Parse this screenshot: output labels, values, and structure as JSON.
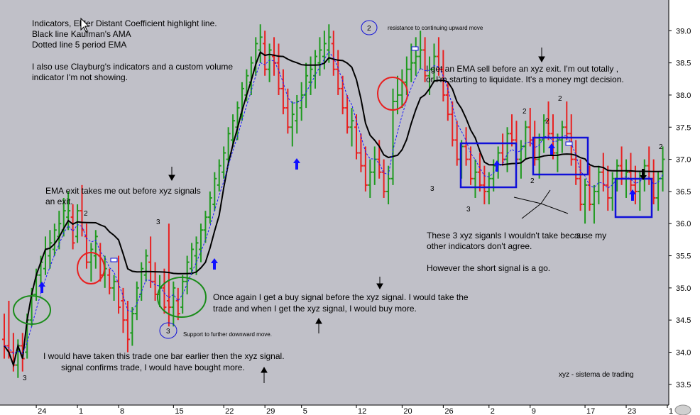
{
  "chart_data": {
    "type": "ohlc",
    "title": "",
    "ylim": [
      33.2,
      39.5
    ],
    "y_ticks": [
      "39.0",
      "38.5",
      "38.0",
      "37.5",
      "37.0",
      "36.5",
      "36.0",
      "35.5",
      "35.0",
      "34.5",
      "34.0",
      "33.5"
    ],
    "y_tick_values": [
      39.0,
      38.5,
      38.0,
      37.5,
      37.0,
      36.5,
      36.0,
      35.5,
      35.0,
      34.5,
      34.0,
      33.5
    ],
    "x_ticks": [
      "24",
      "1",
      "8",
      "15",
      "22",
      "29",
      "5",
      "12",
      "20",
      "26",
      "2",
      "9",
      "17",
      "23",
      "1"
    ],
    "x_tick_bars": [
      7,
      16,
      25,
      37,
      48,
      57,
      65,
      77,
      87,
      96,
      106,
      115,
      127,
      136,
      145
    ],
    "colors": {
      "up": "#1e9a1e",
      "down": "#e82020",
      "ama": "#000000",
      "ema": "#1a1aff",
      "background": "#c0c0c8",
      "circle_green": "#1a8c1a",
      "circle_red": "#e82020",
      "box": "#1010d8"
    },
    "bars": [
      [
        34.2,
        34.6,
        33.9,
        34.1
      ],
      [
        34.1,
        34.8,
        33.9,
        34.0
      ],
      [
        34.0,
        34.3,
        33.7,
        33.8
      ],
      [
        33.8,
        34.2,
        33.6,
        34.1
      ],
      [
        34.1,
        34.3,
        33.7,
        33.9
      ],
      [
        34.0,
        34.6,
        33.9,
        34.5
      ],
      [
        34.5,
        35.0,
        34.4,
        34.9
      ],
      [
        34.9,
        35.3,
        34.8,
        35.2
      ],
      [
        35.2,
        35.5,
        35.0,
        35.4
      ],
      [
        35.3,
        35.8,
        35.2,
        35.6
      ],
      [
        35.5,
        35.9,
        35.3,
        35.7
      ],
      [
        35.6,
        36.0,
        35.5,
        35.9
      ],
      [
        35.8,
        36.2,
        35.6,
        36.0
      ],
      [
        35.9,
        36.4,
        35.8,
        36.2
      ],
      [
        36.1,
        36.5,
        35.9,
        36.2
      ],
      [
        36.1,
        36.3,
        35.6,
        35.7
      ],
      [
        35.8,
        36.3,
        35.7,
        36.2
      ],
      [
        36.2,
        36.6,
        35.8,
        35.9
      ],
      [
        35.8,
        36.0,
        35.3,
        35.4
      ],
      [
        35.4,
        35.7,
        35.1,
        35.6
      ],
      [
        35.5,
        35.9,
        35.3,
        35.8
      ],
      [
        35.5,
        35.7,
        35.1,
        35.2
      ],
      [
        35.2,
        35.5,
        35.0,
        35.3
      ],
      [
        35.2,
        35.3,
        34.9,
        35.0
      ],
      [
        35.0,
        35.2,
        34.8,
        35.1
      ],
      [
        35.1,
        35.5,
        34.6,
        34.7
      ],
      [
        34.8,
        35.0,
        34.3,
        34.5
      ],
      [
        34.5,
        34.8,
        34.0,
        34.2
      ],
      [
        34.3,
        34.7,
        34.1,
        34.6
      ],
      [
        34.6,
        35.1,
        34.5,
        35.0
      ],
      [
        34.9,
        35.4,
        34.8,
        35.3
      ],
      [
        35.2,
        35.6,
        35.1,
        35.5
      ],
      [
        35.4,
        35.8,
        35.0,
        35.1
      ],
      [
        35.1,
        35.4,
        34.8,
        34.9
      ],
      [
        34.9,
        35.2,
        34.7,
        35.0
      ],
      [
        35.0,
        35.3,
        34.6,
        34.7
      ],
      [
        34.8,
        36.0,
        34.4,
        34.7
      ],
      [
        34.7,
        35.1,
        34.4,
        35.0
      ],
      [
        34.8,
        35.0,
        34.5,
        34.6
      ],
      [
        34.7,
        35.2,
        34.6,
        35.1
      ],
      [
        35.1,
        35.5,
        34.9,
        35.4
      ],
      [
        35.3,
        35.7,
        35.2,
        35.6
      ],
      [
        35.5,
        35.8,
        35.2,
        35.7
      ],
      [
        35.6,
        36.0,
        35.4,
        35.9
      ],
      [
        35.9,
        36.2,
        35.7,
        36.1
      ],
      [
        36.1,
        36.5,
        36.0,
        36.4
      ],
      [
        36.3,
        36.8,
        36.2,
        36.7
      ],
      [
        36.6,
        37.0,
        36.5,
        36.9
      ],
      [
        36.8,
        37.2,
        36.7,
        37.1
      ],
      [
        37.0,
        37.5,
        36.9,
        37.4
      ],
      [
        37.3,
        37.7,
        37.2,
        37.6
      ],
      [
        37.5,
        37.9,
        37.3,
        37.8
      ],
      [
        37.7,
        38.2,
        37.6,
        38.1
      ],
      [
        38.0,
        38.4,
        37.9,
        38.3
      ],
      [
        38.2,
        38.6,
        38.0,
        38.5
      ],
      [
        38.4,
        38.9,
        38.3,
        38.8
      ],
      [
        38.7,
        39.1,
        38.5,
        38.9
      ],
      [
        38.8,
        39.0,
        38.3,
        38.4
      ],
      [
        38.4,
        38.8,
        38.2,
        38.7
      ],
      [
        38.6,
        38.9,
        38.3,
        38.5
      ],
      [
        38.5,
        38.8,
        38.0,
        38.1
      ],
      [
        38.1,
        38.4,
        37.7,
        37.8
      ],
      [
        37.8,
        38.1,
        37.4,
        37.5
      ],
      [
        37.5,
        37.9,
        37.2,
        37.7
      ],
      [
        37.6,
        38.0,
        37.4,
        37.9
      ],
      [
        37.8,
        38.2,
        37.6,
        38.0
      ],
      [
        38.0,
        38.5,
        37.8,
        38.3
      ],
      [
        38.2,
        38.6,
        38.0,
        38.4
      ],
      [
        38.3,
        38.7,
        38.1,
        38.6
      ],
      [
        38.5,
        38.9,
        38.3,
        38.7
      ],
      [
        38.6,
        39.0,
        38.4,
        38.8
      ],
      [
        38.7,
        39.1,
        38.5,
        38.9
      ],
      [
        38.8,
        39.0,
        38.3,
        38.4
      ],
      [
        38.4,
        38.7,
        38.0,
        38.1
      ],
      [
        38.1,
        38.3,
        37.7,
        37.8
      ],
      [
        37.8,
        38.0,
        37.4,
        37.5
      ],
      [
        37.5,
        37.8,
        37.2,
        37.6
      ],
      [
        37.5,
        37.7,
        37.0,
        37.1
      ],
      [
        37.1,
        37.4,
        36.8,
        36.9
      ],
      [
        36.9,
        37.2,
        36.5,
        36.6
      ],
      [
        36.6,
        37.0,
        36.4,
        36.8
      ],
      [
        36.8,
        37.2,
        36.6,
        37.0
      ],
      [
        37.0,
        37.3,
        36.7,
        36.8
      ],
      [
        36.8,
        37.0,
        36.4,
        36.5
      ],
      [
        36.5,
        36.9,
        36.3,
        36.7
      ],
      [
        36.7,
        38.1,
        36.6,
        37.9
      ],
      [
        37.9,
        38.3,
        37.7,
        38.0
      ],
      [
        38.0,
        38.4,
        37.8,
        38.2
      ],
      [
        38.2,
        38.6,
        38.0,
        38.4
      ],
      [
        38.4,
        38.8,
        38.2,
        38.5
      ],
      [
        38.5,
        38.9,
        38.3,
        38.6
      ],
      [
        38.6,
        39.0,
        38.4,
        38.7
      ],
      [
        38.7,
        38.9,
        38.2,
        38.3
      ],
      [
        38.3,
        38.6,
        38.0,
        38.4
      ],
      [
        38.4,
        38.8,
        38.2,
        38.6
      ],
      [
        38.6,
        38.9,
        38.3,
        38.4
      ],
      [
        38.4,
        38.7,
        37.9,
        38.0
      ],
      [
        38.0,
        38.2,
        37.6,
        37.7
      ],
      [
        37.7,
        37.9,
        37.2,
        37.3
      ],
      [
        37.3,
        37.6,
        36.9,
        37.0
      ],
      [
        37.0,
        37.3,
        36.7,
        37.2
      ],
      [
        37.2,
        37.5,
        36.9,
        37.0
      ],
      [
        37.0,
        37.2,
        36.6,
        36.7
      ],
      [
        36.7,
        37.0,
        36.4,
        36.8
      ],
      [
        36.8,
        37.1,
        36.5,
        36.6
      ],
      [
        36.6,
        36.9,
        36.3,
        36.5
      ],
      [
        36.5,
        36.8,
        36.3,
        36.7
      ],
      [
        36.7,
        37.0,
        36.5,
        36.9
      ],
      [
        36.9,
        37.2,
        36.7,
        37.1
      ],
      [
        37.1,
        37.4,
        36.9,
        37.0
      ],
      [
        37.0,
        37.5,
        36.8,
        37.4
      ],
      [
        37.4,
        37.7,
        37.2,
        37.3
      ],
      [
        37.3,
        37.6,
        36.9,
        37.0
      ],
      [
        37.0,
        37.3,
        36.7,
        37.2
      ],
      [
        37.2,
        37.6,
        37.0,
        37.5
      ],
      [
        37.5,
        37.8,
        37.2,
        37.3
      ],
      [
        37.3,
        37.6,
        36.9,
        37.0
      ],
      [
        37.0,
        37.4,
        36.7,
        37.3
      ],
      [
        37.3,
        37.7,
        37.1,
        37.6
      ],
      [
        37.6,
        37.9,
        37.3,
        37.4
      ],
      [
        37.4,
        37.7,
        37.0,
        37.1
      ],
      [
        37.1,
        37.4,
        36.8,
        37.3
      ],
      [
        37.3,
        37.6,
        37.1,
        37.5
      ],
      [
        37.5,
        37.9,
        37.3,
        37.4
      ],
      [
        37.4,
        37.7,
        36.9,
        37.0
      ],
      [
        37.0,
        37.3,
        36.6,
        36.7
      ],
      [
        36.7,
        37.0,
        36.2,
        36.3
      ],
      [
        36.3,
        36.7,
        36.0,
        36.6
      ],
      [
        36.6,
        36.9,
        36.2,
        36.3
      ],
      [
        36.3,
        36.6,
        36.0,
        36.5
      ],
      [
        36.5,
        36.9,
        36.3,
        36.8
      ],
      [
        36.8,
        37.1,
        36.5,
        36.6
      ],
      [
        36.6,
        36.9,
        36.2,
        36.4
      ],
      [
        36.4,
        36.8,
        36.2,
        36.7
      ],
      [
        36.7,
        37.0,
        36.5,
        36.9
      ],
      [
        36.9,
        37.2,
        36.6,
        36.7
      ],
      [
        36.7,
        37.0,
        36.4,
        36.8
      ],
      [
        36.8,
        37.1,
        36.5,
        36.6
      ],
      [
        36.6,
        36.9,
        36.3,
        36.5
      ],
      [
        36.5,
        36.8,
        36.2,
        36.7
      ],
      [
        36.7,
        37.0,
        36.5,
        36.9
      ],
      [
        36.9,
        37.2,
        36.6,
        36.7
      ],
      [
        36.7,
        37.0,
        36.3,
        36.4
      ],
      [
        36.4,
        36.8,
        36.2,
        36.7
      ],
      [
        36.7,
        37.2,
        36.5,
        37.0
      ]
    ],
    "annotations": [
      "Indicators, Elder Distant Coefficient highlight line.",
      "Black line  Kaufman's AMA",
      "Dotted line 5 period EMA",
      "I also use Clayburg's indicators and a custom volume",
      "indicator I'm not showing.",
      "EMA exit takes me out before  xyz  signals",
      "an exit.",
      "Once again I get a buy signal before the  xyz  signal.  I would take the",
      "trade and when I get the  xyz  signal, I would buy more.",
      "I would have taken this trade one bar earlier then the  xyz  signal.",
      "signal confirms trade, I would have bought more.",
      "I get an EMA sell before an  xyz  exit.  I'm out totally ,",
      "or I'm starting to liquidate.  It's a money mgt decision.",
      "These 3  xyz  siganls I wouldn't take because my",
      "other indicators don't agree.",
      "However the short signal is a go.",
      "resistance to continuing upward move",
      "Support to further downward move.",
      "xyz - sistema de trading"
    ],
    "count_labels": [
      "3",
      "2",
      "3",
      "3",
      "2",
      "3",
      "2",
      "2",
      "2",
      "2"
    ]
  }
}
